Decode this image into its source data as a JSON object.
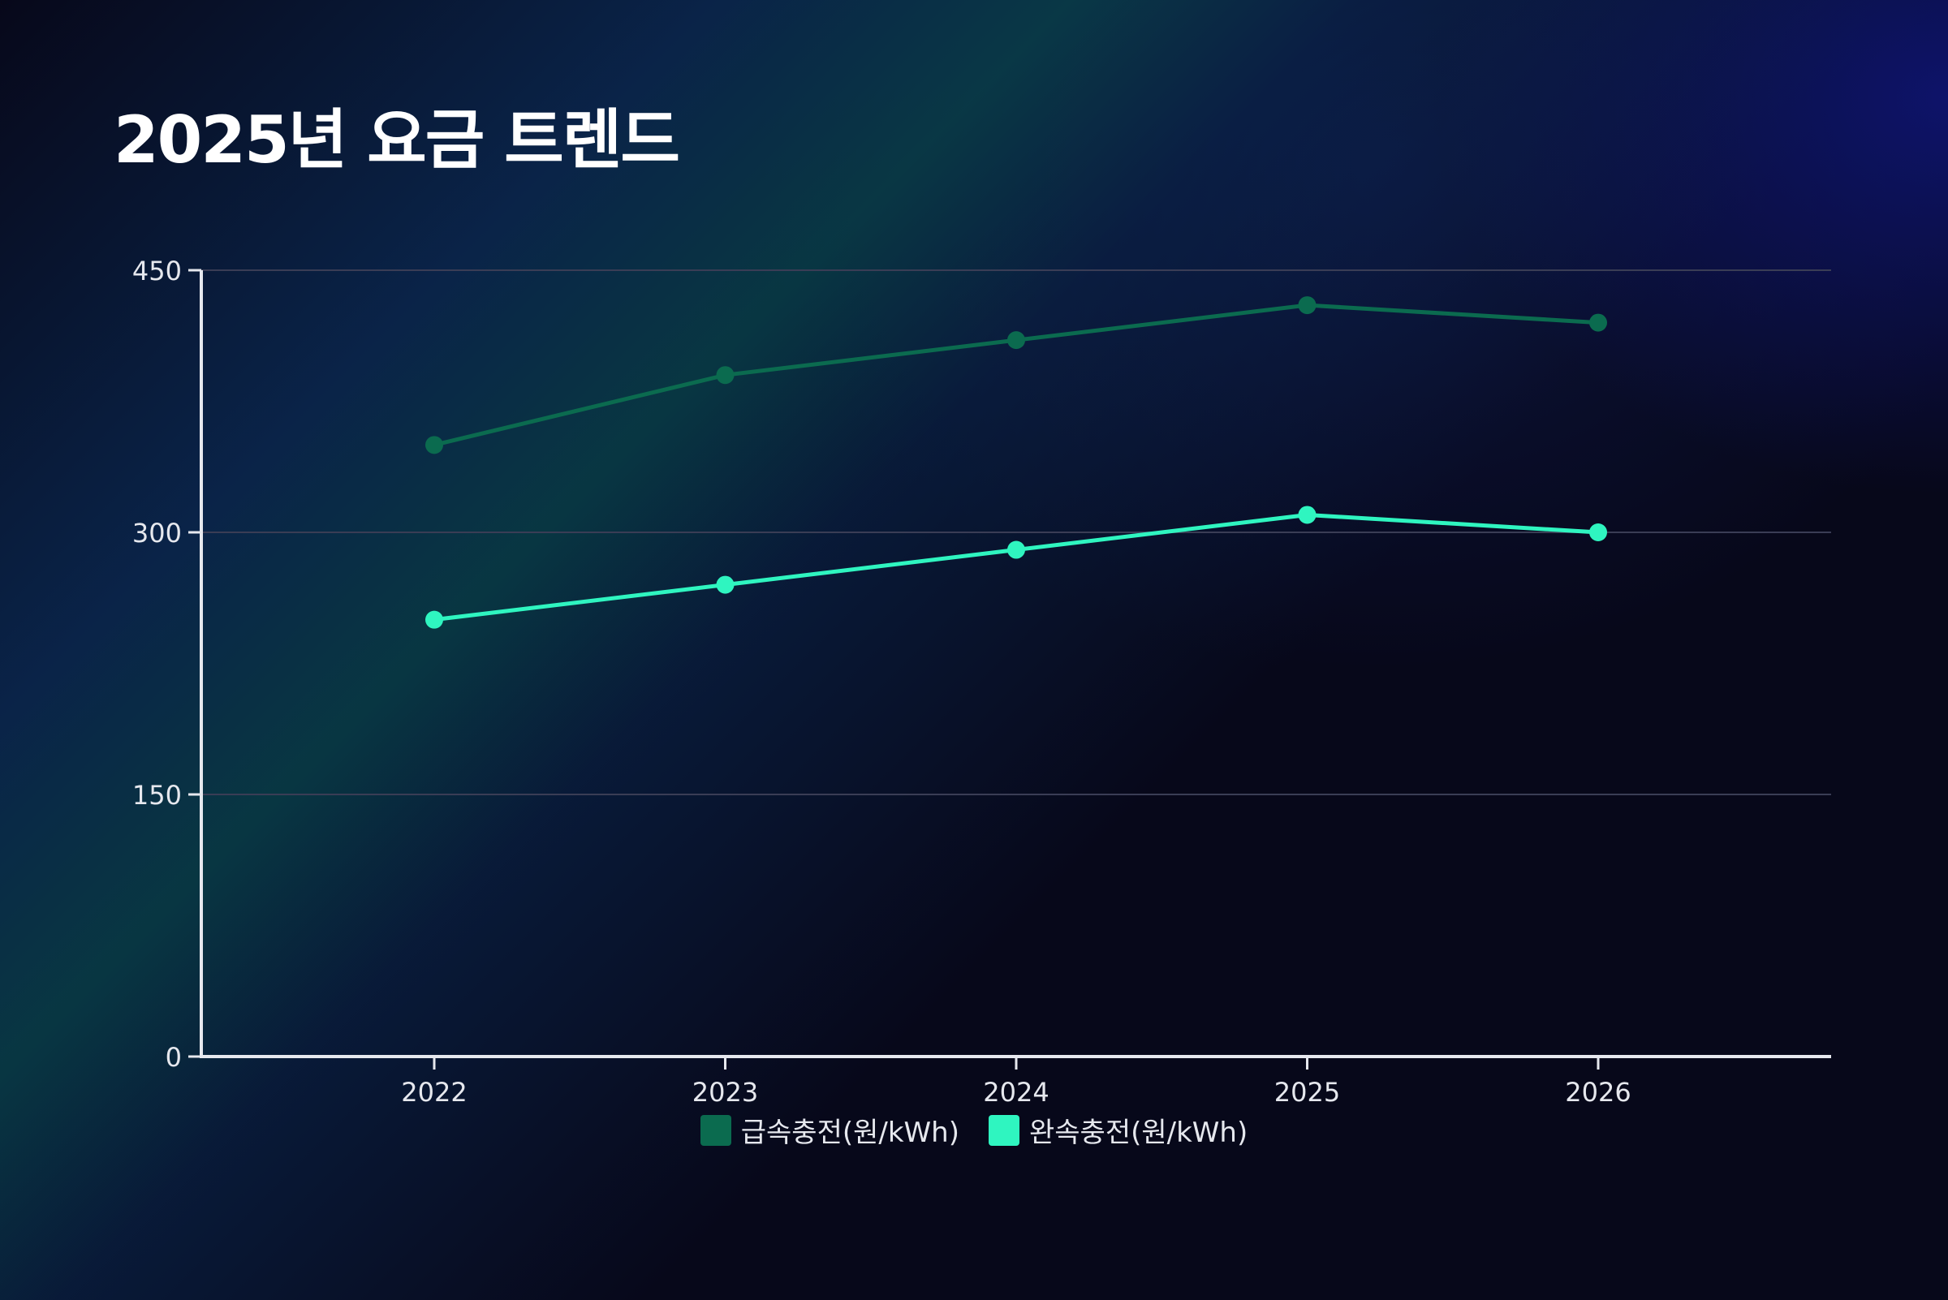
{
  "title": "2025년 요금 트렌드",
  "chart_data": {
    "type": "line",
    "title": "2025년 요금 트렌드",
    "categories": [
      "2022",
      "2023",
      "2024",
      "2025",
      "2026"
    ],
    "series": [
      {
        "name": "급속충전(원/kWh)",
        "values": [
          350,
          390,
          410,
          430,
          420
        ],
        "color": "#0b6b4f"
      },
      {
        "name": "완속충전(원/kWh)",
        "values": [
          250,
          270,
          290,
          310,
          300
        ],
        "color": "#2ff5c0"
      }
    ],
    "ylim": [
      0,
      450
    ],
    "yticks": [
      0,
      150,
      300,
      450
    ],
    "xlabel": "",
    "ylabel": "",
    "grid": true,
    "legend": "bottom"
  }
}
